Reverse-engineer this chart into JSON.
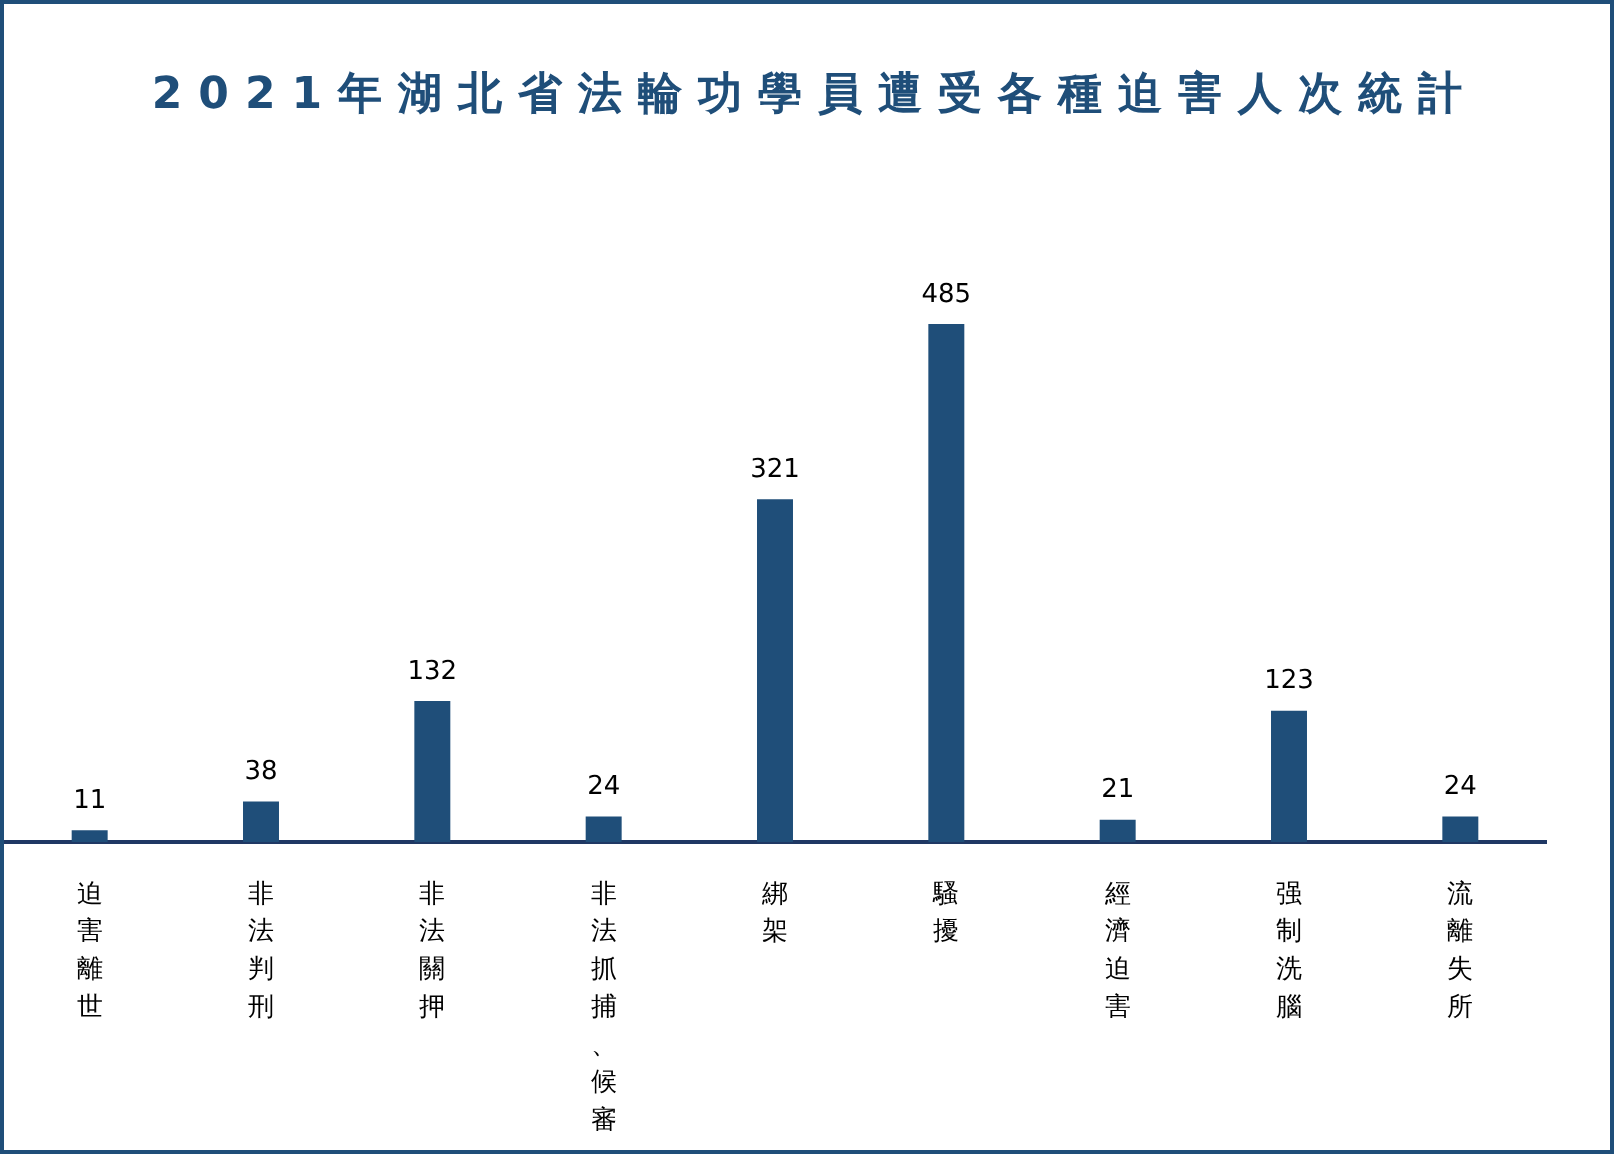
{
  "chart_data": {
    "type": "bar",
    "title": "2021年湖北省法輪功學員遭受各種迫害人次統計",
    "categories": [
      "迫害離世",
      "非法判刑",
      "非法關押",
      "非法抓捕、候審",
      "綁架",
      "騷擾",
      "經濟迫害",
      "强制洗腦",
      "流離失所"
    ],
    "values": [
      11,
      38,
      132,
      24,
      321,
      485,
      21,
      123,
      24
    ],
    "color": "#1f4e79",
    "data_labels": true
  }
}
